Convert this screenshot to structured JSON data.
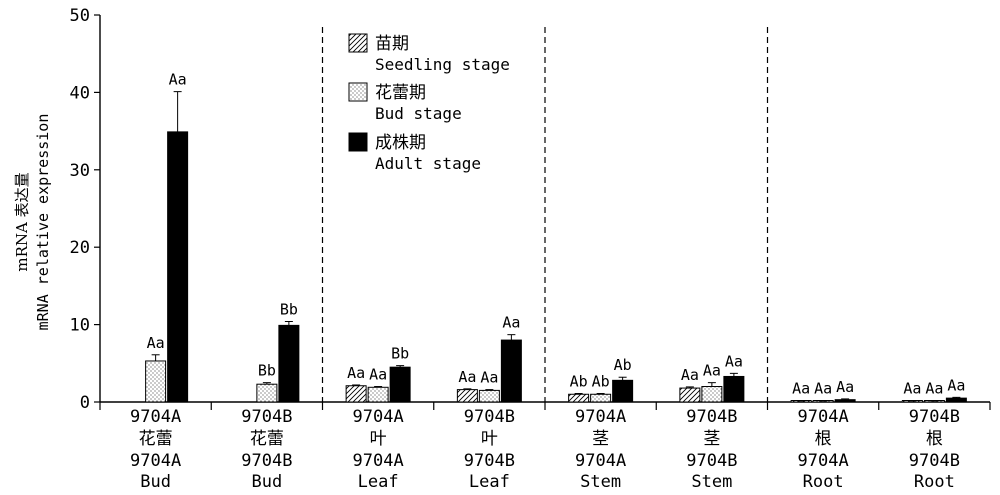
{
  "chart_data": {
    "type": "bar",
    "ylabel": [
      "mRNA 表达量",
      "mRNA relative expression"
    ],
    "ylim": [
      0,
      50
    ],
    "yticks": [
      "0",
      "10",
      "20",
      "30",
      "40",
      "50"
    ],
    "legend_placement": "top-center",
    "categories": [
      [
        "9704A",
        "花蕾",
        "9704A",
        "Bud"
      ],
      [
        "9704B",
        "花蕾",
        "9704B",
        "Bud"
      ],
      [
        "9704A",
        "叶",
        "9704A",
        "Leaf"
      ],
      [
        "9704B",
        "叶",
        "9704B",
        "Leaf"
      ],
      [
        "9704A",
        "茎",
        "9704A",
        "Stem"
      ],
      [
        "9704B",
        "茎",
        "9704B",
        "Stem"
      ],
      [
        "9704A",
        "根",
        "9704A",
        "Root"
      ],
      [
        "9704B",
        "根",
        "9704B",
        "Root"
      ]
    ],
    "series": [
      {
        "name": [
          "苗期",
          "Seedling stage"
        ],
        "pattern": "hatch",
        "values": [
          null,
          null,
          2.1,
          1.6,
          1.0,
          1.8,
          0.1,
          0.1
        ],
        "errors": [
          null,
          null,
          0.1,
          0.1,
          0.1,
          0.15,
          0.05,
          0.05
        ],
        "labels": [
          "",
          "",
          "Aa",
          "Aa",
          "Ab",
          "Aa",
          "Aa",
          "Aa"
        ]
      },
      {
        "name": [
          "花蕾期",
          "Bud stage"
        ],
        "pattern": "dots",
        "values": [
          5.3,
          2.3,
          1.9,
          1.5,
          1.0,
          2.0,
          0.1,
          0.1
        ],
        "errors": [
          0.8,
          0.2,
          0.1,
          0.1,
          0.1,
          0.5,
          0.05,
          0.05
        ],
        "labels": [
          "Aa",
          "Bb",
          "Aa",
          "Aa",
          "Ab",
          "Aa",
          "Aa",
          "Aa"
        ]
      },
      {
        "name": [
          "成株期",
          "Adult stage"
        ],
        "pattern": "solid",
        "color": "#000000",
        "values": [
          34.9,
          9.9,
          4.5,
          8.0,
          2.8,
          3.3,
          0.3,
          0.5
        ],
        "errors": [
          5.2,
          0.5,
          0.2,
          0.7,
          0.4,
          0.4,
          0.1,
          0.1
        ],
        "labels": [
          "Aa",
          "Bb",
          "Bb",
          "Aa",
          "Ab",
          "Aa",
          "Aa",
          "Aa"
        ]
      }
    ],
    "separators_after_groups": [
      2,
      4,
      6
    ]
  }
}
